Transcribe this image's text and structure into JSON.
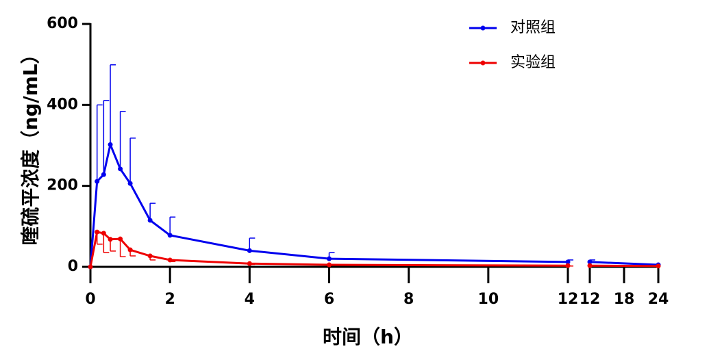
{
  "chart_data": {
    "type": "line",
    "x_label": "时间（h）",
    "y_label": "喹硫平浓度（ng/mL）",
    "x": [
      0,
      0.167,
      0.333,
      0.5,
      0.75,
      1,
      1.5,
      2,
      4,
      6,
      12,
      24
    ],
    "x_segments": [
      {
        "xlim": [
          0,
          12
        ],
        "xticks": [
          0,
          2,
          4,
          6,
          8,
          10,
          12
        ]
      },
      {
        "xlim": [
          12,
          24
        ],
        "xticks": [
          12,
          18,
          24
        ]
      }
    ],
    "ylim": [
      0,
      600
    ],
    "yticks": [
      0,
      200,
      400,
      600
    ],
    "legend": "top-right",
    "series": [
      {
        "name": "对照组",
        "color": "#0000ee",
        "error_direction": "up",
        "values": [
          0,
          211,
          228,
          302,
          242,
          206,
          115,
          78,
          40,
          20,
          12,
          5
        ],
        "errors": [
          null,
          189,
          183,
          197,
          142,
          112,
          42,
          45,
          31,
          15,
          5,
          null
        ]
      },
      {
        "name": "实验组",
        "color": "#ee0000",
        "error_direction": "down",
        "values": [
          0,
          86,
          83,
          68,
          69,
          42,
          27,
          17,
          8,
          5,
          3,
          2
        ],
        "errors": [
          null,
          30,
          48,
          29,
          44,
          15,
          10,
          4,
          2,
          1,
          1,
          null
        ]
      }
    ]
  }
}
